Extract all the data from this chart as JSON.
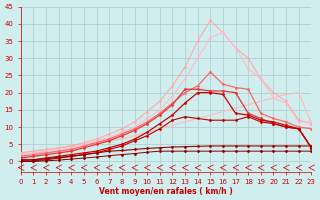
{
  "background_color": "#d0eeee",
  "grid_color": "#aacccc",
  "xlabel": "Vent moyen/en rafales ( km/h )",
  "xlim": [
    0,
    23
  ],
  "ylim": [
    -3,
    45
  ],
  "yticks": [
    0,
    5,
    10,
    15,
    20,
    25,
    30,
    35,
    40,
    45
  ],
  "xticks": [
    0,
    1,
    2,
    3,
    4,
    5,
    6,
    7,
    8,
    9,
    10,
    11,
    12,
    13,
    14,
    15,
    16,
    17,
    18,
    19,
    20,
    21,
    22,
    23
  ],
  "xlabel_color": "#cc0000",
  "tick_color": "#cc0000",
  "label_fontsize": 5.5,
  "tick_fontsize": 5,
  "lines": [
    {
      "x": [
        0,
        1,
        2,
        3,
        4,
        5,
        6,
        7,
        8,
        9,
        10,
        11,
        12,
        13,
        14,
        15,
        16,
        17,
        18,
        19,
        20,
        21,
        22,
        23
      ],
      "y": [
        2.5,
        3.0,
        3.5,
        4.0,
        4.5,
        5.0,
        5.5,
        6.0,
        6.5,
        7.5,
        8.5,
        9.5,
        10.5,
        11.5,
        12.5,
        13.5,
        14.5,
        15.5,
        16.5,
        17.5,
        18.5,
        19.5,
        20.0,
        11.0
      ],
      "color": "#ffbbbb",
      "lw": 0.8,
      "marker": null,
      "ms": 0
    },
    {
      "x": [
        0,
        1,
        2,
        3,
        4,
        5,
        6,
        7,
        8,
        9,
        10,
        11,
        12,
        13,
        14,
        15,
        16,
        17,
        18,
        19,
        20,
        21,
        22,
        23
      ],
      "y": [
        2.5,
        3.0,
        3.5,
        4.0,
        4.5,
        5.5,
        6.5,
        8.0,
        9.5,
        11.5,
        14.5,
        17.5,
        22.0,
        27.5,
        35.0,
        41.0,
        37.5,
        33.0,
        30.0,
        24.0,
        20.0,
        17.5,
        12.0,
        11.0
      ],
      "color": "#ffaaaa",
      "lw": 0.8,
      "marker": "D",
      "ms": 1.5
    },
    {
      "x": [
        0,
        1,
        2,
        3,
        4,
        5,
        6,
        7,
        8,
        9,
        10,
        11,
        12,
        13,
        14,
        15,
        16,
        17,
        18,
        19,
        20,
        21,
        22,
        23
      ],
      "y": [
        2.0,
        2.5,
        3.0,
        3.5,
        4.0,
        5.0,
        6.0,
        7.0,
        8.5,
        10.0,
        12.5,
        15.0,
        19.0,
        24.0,
        30.0,
        36.0,
        37.5,
        33.0,
        27.0,
        24.0,
        18.5,
        17.0,
        11.5,
        11.5
      ],
      "color": "#ffbbcc",
      "lw": 0.8,
      "marker": "D",
      "ms": 1.5
    },
    {
      "x": [
        0,
        1,
        2,
        3,
        4,
        5,
        6,
        7,
        8,
        9,
        10,
        11,
        12,
        13,
        14,
        15,
        16,
        17,
        18,
        19,
        20,
        21,
        22,
        23
      ],
      "y": [
        1.5,
        2.0,
        2.5,
        3.0,
        3.5,
        4.5,
        5.5,
        6.5,
        8.0,
        9.5,
        11.5,
        14.0,
        17.0,
        20.0,
        22.0,
        26.0,
        22.5,
        21.5,
        21.0,
        14.0,
        12.5,
        11.5,
        10.0,
        9.5
      ],
      "color": "#ff6666",
      "lw": 0.9,
      "marker": "D",
      "ms": 1.5
    },
    {
      "x": [
        0,
        1,
        2,
        3,
        4,
        5,
        6,
        7,
        8,
        9,
        10,
        11,
        12,
        13,
        14,
        15,
        16,
        17,
        18,
        19,
        20,
        21,
        22,
        23
      ],
      "y": [
        1.0,
        1.5,
        2.0,
        2.5,
        3.0,
        4.0,
        5.0,
        6.0,
        7.5,
        9.0,
        11.0,
        13.5,
        16.5,
        21.0,
        21.0,
        20.5,
        20.5,
        20.0,
        14.0,
        12.5,
        11.0,
        10.0,
        9.5,
        4.0
      ],
      "color": "#ee3333",
      "lw": 0.9,
      "marker": "D",
      "ms": 1.5
    },
    {
      "x": [
        0,
        1,
        2,
        3,
        4,
        5,
        6,
        7,
        8,
        9,
        10,
        11,
        12,
        13,
        14,
        15,
        16,
        17,
        18,
        19,
        20,
        21,
        22,
        23
      ],
      "y": [
        0.5,
        0.5,
        1.0,
        1.5,
        2.0,
        2.5,
        3.0,
        4.0,
        5.0,
        6.5,
        8.5,
        11.0,
        13.5,
        17.0,
        20.0,
        20.0,
        19.5,
        14.0,
        13.5,
        12.0,
        11.5,
        10.5,
        9.5,
        4.0
      ],
      "color": "#cc0000",
      "lw": 0.9,
      "marker": "D",
      "ms": 1.5
    },
    {
      "x": [
        0,
        1,
        2,
        3,
        4,
        5,
        6,
        7,
        8,
        9,
        10,
        11,
        12,
        13,
        14,
        15,
        16,
        17,
        18,
        19,
        20,
        21,
        22,
        23
      ],
      "y": [
        0.0,
        0.2,
        0.5,
        1.0,
        1.5,
        2.0,
        2.5,
        3.5,
        4.5,
        6.0,
        7.5,
        9.5,
        12.0,
        13.0,
        12.5,
        12.0,
        12.0,
        12.0,
        13.0,
        11.5,
        11.0,
        10.0,
        9.5,
        4.0
      ],
      "color": "#bb0000",
      "lw": 0.8,
      "marker": "D",
      "ms": 1.5
    },
    {
      "x": [
        0,
        1,
        2,
        3,
        4,
        5,
        6,
        7,
        8,
        9,
        10,
        11,
        12,
        13,
        14,
        15,
        16,
        17,
        18,
        19,
        20,
        21,
        22,
        23
      ],
      "y": [
        0.3,
        0.5,
        0.8,
        1.2,
        1.5,
        2.0,
        2.5,
        3.0,
        3.2,
        3.5,
        3.8,
        4.0,
        4.2,
        4.3,
        4.4,
        4.5,
        4.5,
        4.5,
        4.5,
        4.5,
        4.5,
        4.5,
        4.5,
        4.5
      ],
      "color": "#990000",
      "lw": 0.8,
      "marker": "D",
      "ms": 1.5
    },
    {
      "x": [
        0,
        1,
        2,
        3,
        4,
        5,
        6,
        7,
        8,
        9,
        10,
        11,
        12,
        13,
        14,
        15,
        16,
        17,
        18,
        19,
        20,
        21,
        22,
        23
      ],
      "y": [
        0.0,
        0.0,
        0.2,
        0.4,
        0.7,
        1.0,
        1.3,
        1.7,
        2.0,
        2.3,
        2.7,
        3.0,
        3.0,
        3.0,
        3.0,
        3.0,
        3.0,
        3.0,
        3.0,
        3.0,
        3.0,
        3.0,
        3.0,
        3.0
      ],
      "color": "#880000",
      "lw": 0.7,
      "marker": "D",
      "ms": 1.5
    }
  ]
}
